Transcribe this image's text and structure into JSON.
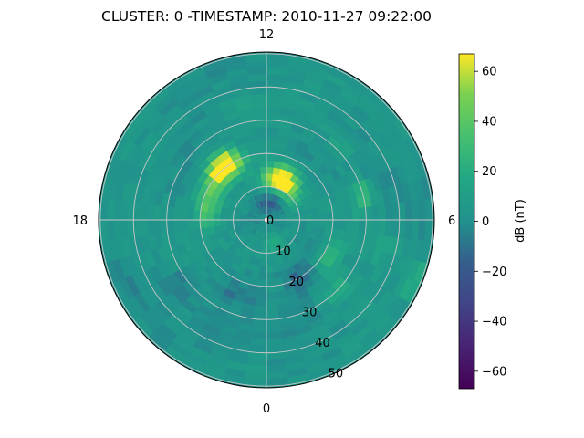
{
  "chart_data": {
    "type": "heatmap",
    "projection": "polar",
    "title": "CLUSTER: 0 -TIMESTAMP: 2010-11-27 09:22:00",
    "theta_tick_labels": {
      "top": "12",
      "right": "6",
      "bottom": "0",
      "left": "18"
    },
    "radial_tick_labels": [
      "0",
      "10",
      "20",
      "30",
      "40",
      "50"
    ],
    "radial_ticks": [
      0,
      10,
      20,
      30,
      40,
      50
    ],
    "rlim": [
      0,
      50
    ],
    "grid": true,
    "colormap": "viridis",
    "colorbar": {
      "label": "dB (nT)",
      "range": [
        -67,
        67
      ],
      "ticks": [
        60,
        40,
        20,
        0,
        -20,
        -40,
        -60
      ],
      "tick_labels": [
        "60",
        "40",
        "20",
        "0",
        "−20",
        "−40",
        "−60"
      ]
    },
    "hotspots": [
      {
        "angle_hours": 14.4,
        "radius": 21,
        "value": 55
      },
      {
        "angle_hours": 14.9,
        "radius": 20,
        "value": 45
      },
      {
        "angle_hours": 10.3,
        "radius": 12,
        "value": 58
      },
      {
        "angle_hours": 10.9,
        "radius": 14,
        "value": 42
      },
      {
        "angle_hours": 4.5,
        "radius": 49,
        "value": 18
      },
      {
        "angle_hours": 16.5,
        "radius": 19,
        "value": 28
      },
      {
        "angle_hours": 4.0,
        "radius": 22,
        "value": 22
      },
      {
        "angle_hours": 7.0,
        "radius": 30,
        "value": 22
      },
      {
        "angle_hours": 0.7,
        "radius": 7,
        "value": 25
      },
      {
        "angle_hours": 17.7,
        "radius": 18,
        "value": 25
      },
      {
        "angle_hours": 3.0,
        "radius": 30,
        "value": 15
      },
      {
        "angle_hours": 9.0,
        "radius": 32,
        "value": 12
      },
      {
        "angle_hours": 5.2,
        "radius": 37,
        "value": 10
      },
      {
        "angle_hours": 11.5,
        "radius": 6,
        "value": -22
      },
      {
        "angle_hours": 0.0,
        "radius": 6,
        "value": -18
      },
      {
        "angle_hours": 2.0,
        "radius": 20,
        "value": -14
      },
      {
        "angle_hours": 20.5,
        "radius": 33,
        "value": -10
      },
      {
        "angle_hours": 22.5,
        "radius": 24,
        "value": -10
      },
      {
        "angle_hours": 13.0,
        "radius": 35,
        "value": 10
      },
      {
        "angle_hours": 19.5,
        "radius": 46,
        "value": -8
      }
    ]
  }
}
